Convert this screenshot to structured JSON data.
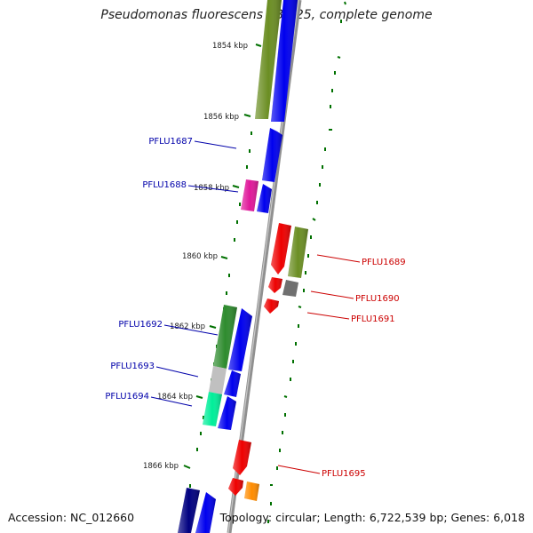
{
  "title": "Pseudomonas fluorescens SBW25, complete genome",
  "footer": {
    "accession": "Accession: NC_012660",
    "summary": "Topology: circular; Length: 6,722,539 bp; Genes: 6,018"
  },
  "ticks": [
    "1854 kbp",
    "1856 kbp",
    "1858 kbp",
    "1860 kbp",
    "1862 kbp",
    "1864 kbp",
    "1866 kbp"
  ],
  "genes": {
    "left": [
      "PFLU1687",
      "PFLU1688",
      "PFLU1692",
      "PFLU1693",
      "PFLU1694"
    ],
    "right": [
      "PFLU1689",
      "PFLU1690",
      "PFLU1691",
      "PFLU1695"
    ]
  },
  "colors": {
    "backbone": "#909090",
    "forward_cds": "#0000ee",
    "reverse_cds": "#ee0000",
    "forward_label": "#0000aa",
    "reverse_label": "#cc0000",
    "tick": "#007000",
    "olive": "#6b8e23",
    "green": "#2e8b2e",
    "magenta": "#e0189a",
    "silver": "#c0c0c0",
    "spring": "#00ee99",
    "dark_grey": "#707070",
    "orange": "#ff8c00",
    "navy": "#000080"
  }
}
